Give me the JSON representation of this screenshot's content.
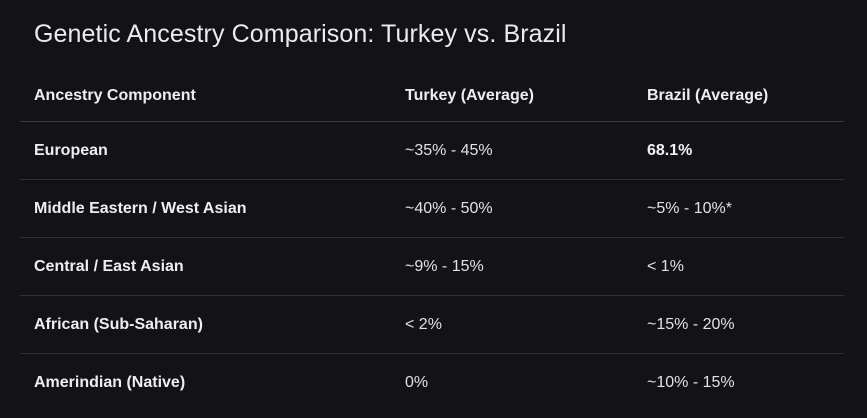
{
  "title": "Genetic Ancestry Comparison: Turkey vs. Brazil",
  "table": {
    "headers": [
      "Ancestry Component",
      "Turkey (Average)",
      "Brazil (Average)"
    ],
    "rows": [
      {
        "component": "European",
        "turkey": "~35% - 45%",
        "brazil": "68.1%"
      },
      {
        "component": "Middle Eastern / West Asian",
        "turkey": "~40% - 50%",
        "brazil": "~5% - 10%*"
      },
      {
        "component": "Central / East Asian",
        "turkey": "~9% - 15%",
        "brazil": "< 1%"
      },
      {
        "component": "African (Sub-Saharan)",
        "turkey": "< 2%",
        "brazil": "~15% - 20%"
      },
      {
        "component": "Amerindian (Native)",
        "turkey": "0%",
        "brazil": "~10% - 15%"
      }
    ]
  }
}
